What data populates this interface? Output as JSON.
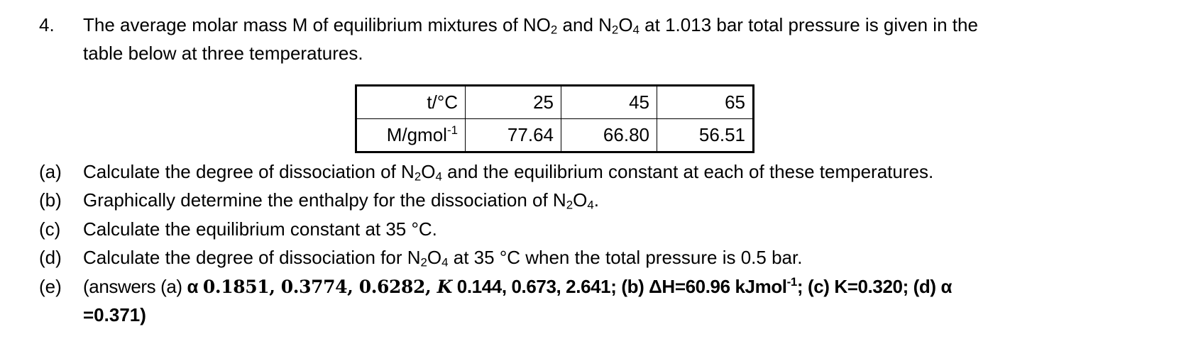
{
  "question": {
    "number": "4.",
    "intro_line1_a": "The average molar mass M of equilibrium mixtures of NO",
    "intro_line1_b": " and N",
    "intro_line1_c": "O",
    "intro_line1_d": " at 1.013 bar total pressure is given in the",
    "intro_line2": "table below at three temperatures.",
    "sub2": "2",
    "sub4": "4"
  },
  "table": {
    "rows": [
      {
        "header": "t/°C",
        "values": [
          "25",
          "45",
          "65"
        ]
      },
      {
        "header": "M/gmol",
        "header_sup": "-1",
        "values": [
          "77.64",
          "66.80",
          "56.51"
        ]
      }
    ]
  },
  "parts": {
    "a": {
      "label": "(a)",
      "text_a": "Calculate the degree of dissociation of N",
      "text_b": "O",
      "text_c": " and the equilibrium constant at each of these temperatures."
    },
    "b": {
      "label": "(b)",
      "text_a": "Graphically determine the enthalpy for the dissociation of N",
      "text_b": "O",
      "text_c": "."
    },
    "c": {
      "label": "(c)",
      "text": "Calculate the equilibrium constant at 35 °C."
    },
    "d": {
      "label": "(d)",
      "text_a": "Calculate the degree of dissociation for N",
      "text_b": "O",
      "text_c": " at 35 °C when the total pressure is 0.5 bar."
    },
    "e": {
      "label": "(e)",
      "t1": "(answers (a) ",
      "alpha": "α ",
      "alpha_vals": "0.1851, 0.3774, 0.6282, ",
      "k": "K",
      "k_vals": " 0.144, 0.673, 2.641; (b) ΔH=60.96 kJmol",
      "sup": "-1",
      "t2": "; (c) K=0.320; (d) α",
      "t3": "=0.371)"
    }
  }
}
